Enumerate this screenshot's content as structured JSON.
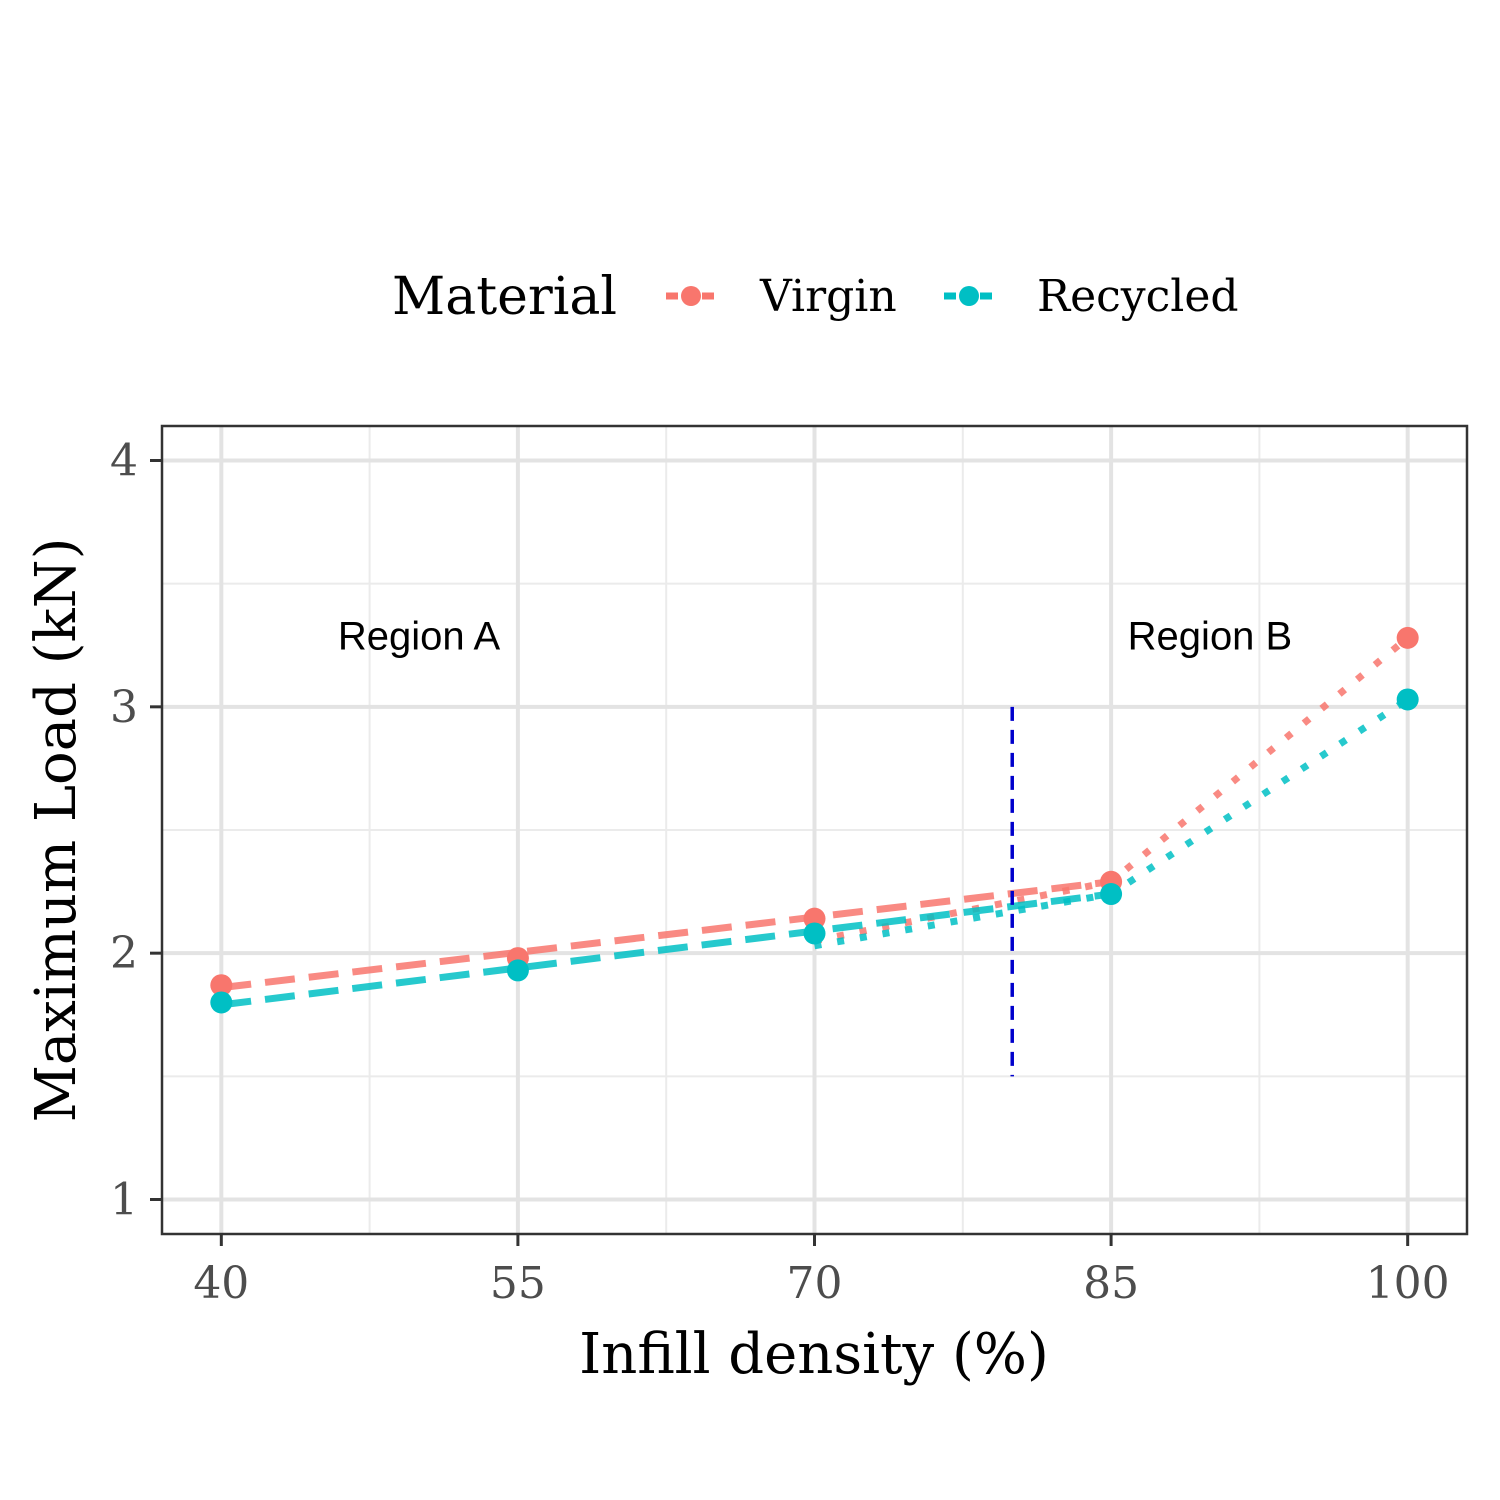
{
  "chart_data": {
    "type": "line",
    "xlabel": "Infill density (%)",
    "ylabel": "Maximum Load (kN)",
    "x_ticks": [
      40,
      55,
      70,
      85,
      100
    ],
    "y_ticks": [
      1,
      2,
      3,
      4
    ],
    "xlim": [
      37,
      103
    ],
    "ylim": [
      0.86,
      4.14
    ],
    "grid": true,
    "legend": {
      "title": "Material",
      "position": "top",
      "entries": [
        "Virgin",
        "Recycled"
      ]
    },
    "series": [
      {
        "name": "Virgin",
        "color": "#F8766D",
        "x": [
          40,
          55,
          70,
          85,
          100
        ],
        "y": [
          1.87,
          1.98,
          2.14,
          2.29,
          3.28
        ],
        "fit_region_a": [
          [
            40,
            1.86
          ],
          [
            85,
            2.29
          ]
        ],
        "fit_region_b": [
          [
            70,
            2.05
          ],
          [
            85,
            2.29
          ],
          [
            100,
            3.28
          ]
        ]
      },
      {
        "name": "Recycled",
        "color": "#00BFC4",
        "x": [
          40,
          55,
          70,
          85,
          100
        ],
        "y": [
          1.8,
          1.93,
          2.08,
          2.24,
          3.03
        ],
        "fit_region_a": [
          [
            40,
            1.79
          ],
          [
            85,
            2.24
          ]
        ],
        "fit_region_b": [
          [
            70,
            2.03
          ],
          [
            85,
            2.24
          ],
          [
            100,
            3.03
          ]
        ]
      }
    ],
    "reference_line": {
      "x": 80,
      "y_from": 1.5,
      "y_to": 3.0,
      "color": "#0000CC",
      "style": "dashed"
    },
    "annotations": [
      {
        "text": "Region A",
        "x": 50,
        "y": 3.29
      },
      {
        "text": "Region B",
        "x": 90,
        "y": 3.29
      }
    ]
  }
}
